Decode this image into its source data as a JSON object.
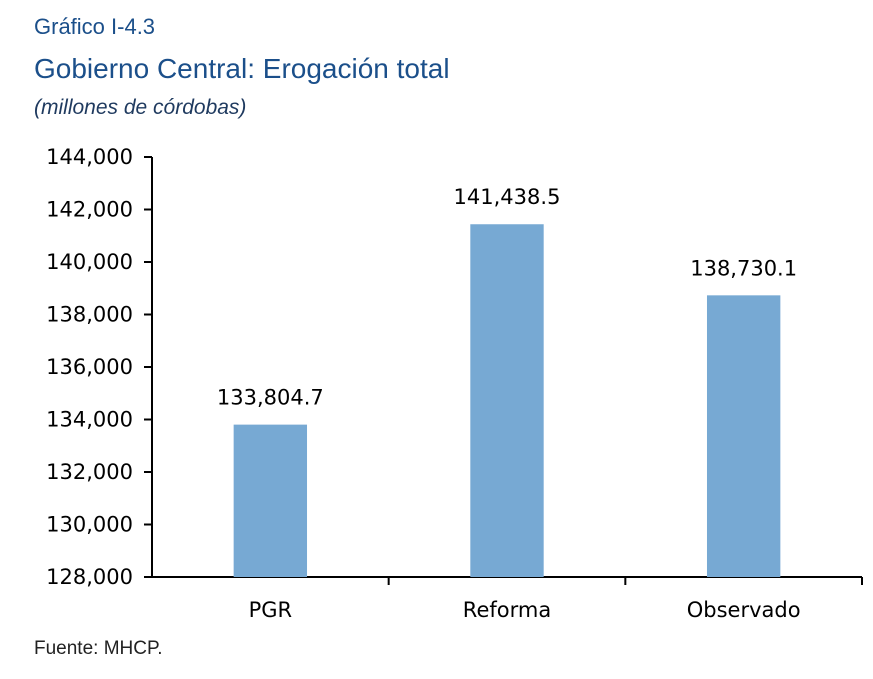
{
  "figure": {
    "number": "Gráfico I-4.3",
    "title": "Gobierno Central: Erogación total",
    "units": "(millones de córdobas)",
    "source": "Fuente: MHCP."
  },
  "colors": {
    "bar": "#77a9d3",
    "axis": "#000000",
    "title": "#1b4f8a"
  },
  "chart_data": {
    "type": "bar",
    "title": "Gobierno Central: Erogación total",
    "xlabel": "",
    "ylabel": "",
    "categories": [
      "PGR",
      "Reforma",
      "Observado"
    ],
    "values": [
      133804.7,
      141438.5,
      138730.1
    ],
    "data_labels": [
      "133,804.7",
      "141,438.5",
      "138,730.1"
    ],
    "ylim": [
      128000,
      144000
    ],
    "yticks": [
      128000,
      130000,
      132000,
      134000,
      136000,
      138000,
      140000,
      142000,
      144000
    ],
    "ytick_labels": [
      "128,000",
      "130,000",
      "132,000",
      "134,000",
      "136,000",
      "138,000",
      "140,000",
      "142,000",
      "144,000"
    ],
    "grid": false,
    "legend": "none"
  }
}
